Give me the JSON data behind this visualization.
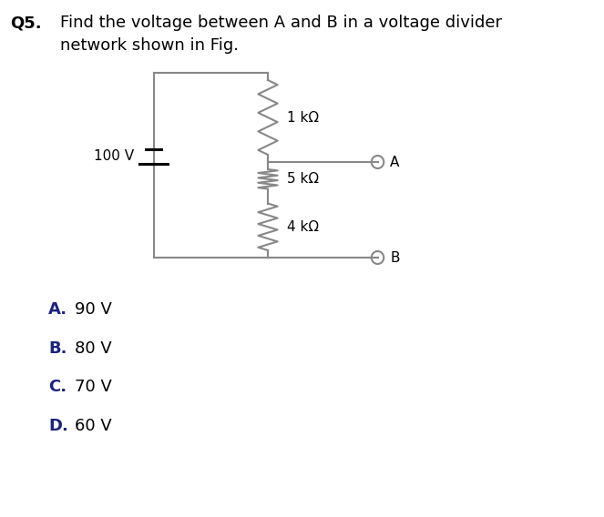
{
  "title_q": "Q5.",
  "title_text1": "Find the voltage between A and B in a voltage divider",
  "title_text2": "network shown in Fig.",
  "voltage_label": "100 V",
  "resistor1_label": "1 kΩ",
  "resistor2_label": "5 kΩ",
  "resistor3_label": "4 kΩ",
  "node_A_label": "A",
  "node_B_label": "B",
  "choice_letters": [
    "A.",
    "B.",
    "C.",
    "D."
  ],
  "choice_values": [
    "90 V",
    "80 V",
    "70 V",
    "60 V"
  ],
  "bg_color": "#ffffff",
  "text_color": "#000000",
  "bold_color": "#1a237e",
  "circuit_color": "#888888",
  "node_color": "#888888"
}
